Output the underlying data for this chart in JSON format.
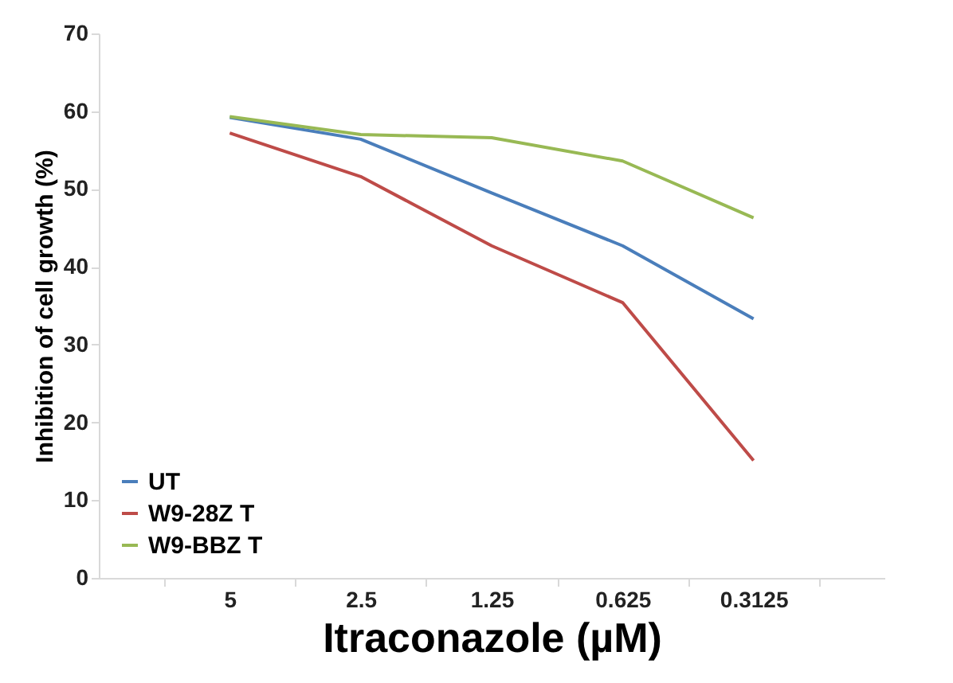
{
  "chart_data": {
    "type": "line",
    "xlabel": "Itraconazole (µM)",
    "ylabel": "Inhibition of cell growth (%)",
    "categories": [
      "5",
      "2.5",
      "1.25",
      "0.625",
      "0.3125"
    ],
    "series": [
      {
        "name": "UT",
        "color": "#4a7ebb",
        "values": [
          59.2,
          56.4,
          49.5,
          42.7,
          33.3
        ]
      },
      {
        "name": "W9-28Z T",
        "color": "#be4b48",
        "values": [
          57.2,
          51.6,
          42.7,
          35.4,
          15.1
        ]
      },
      {
        "name": "W9-BBZ T",
        "color": "#98b954",
        "values": [
          59.3,
          57.0,
          56.6,
          53.6,
          46.3
        ]
      }
    ],
    "ylim": [
      0,
      70
    ],
    "yticks": [
      0,
      10,
      20,
      30,
      40,
      50,
      60,
      70
    ],
    "grid": false,
    "legend": "bottom left",
    "marker": "none",
    "line_style": "solid"
  }
}
